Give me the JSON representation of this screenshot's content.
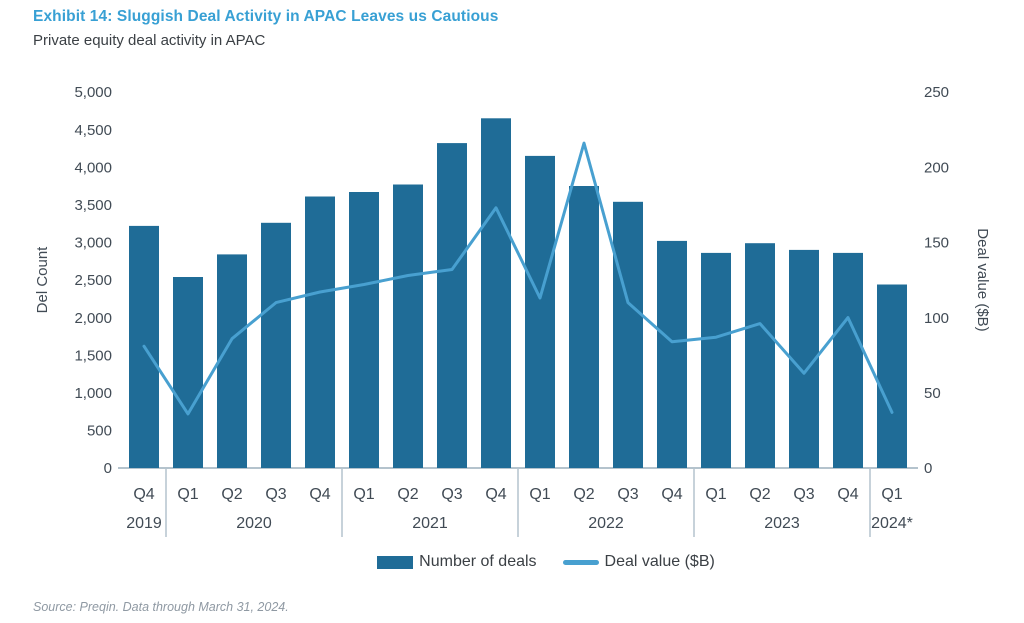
{
  "header": {
    "exhibit_title": "Exhibit 14: Sluggish Deal Activity in APAC Leaves us Cautious",
    "subtitle": "Private equity deal activity in APAC"
  },
  "footer": {
    "source": "Source: Preqin. Data through March 31, 2024."
  },
  "colors": {
    "title": "#38a0d4",
    "bar": "#1f6c97",
    "line": "#48a0d0",
    "axis_text": "#414b55",
    "grid": "#b4c3cd",
    "source_text": "#8f99a3"
  },
  "chart_data": {
    "type": "bar",
    "title": "Private equity deal activity in APAC",
    "categories": [
      "Q4",
      "Q1",
      "Q2",
      "Q3",
      "Q4",
      "Q1",
      "Q2",
      "Q3",
      "Q4",
      "Q1",
      "Q2",
      "Q3",
      "Q4",
      "Q1",
      "Q2",
      "Q3",
      "Q4",
      "Q1"
    ],
    "year_groups": [
      {
        "label": "2019",
        "count": 1
      },
      {
        "label": "2020",
        "count": 4
      },
      {
        "label": "2021",
        "count": 4
      },
      {
        "label": "2022",
        "count": 4
      },
      {
        "label": "2023",
        "count": 4
      },
      {
        "label": "2024*",
        "count": 1
      }
    ],
    "series": [
      {
        "name": "Number of deals",
        "type": "bar",
        "axis": "left",
        "values": [
          3220,
          2540,
          2840,
          3260,
          3610,
          3670,
          3770,
          4320,
          4650,
          4150,
          3750,
          3540,
          3020,
          2860,
          2990,
          2900,
          2860,
          2440
        ]
      },
      {
        "name": "Deal value ($B)",
        "type": "line",
        "axis": "right",
        "values": [
          81,
          36,
          86,
          110,
          117,
          122,
          128,
          132,
          173,
          113,
          216,
          110,
          84,
          87,
          96,
          63,
          100,
          37
        ]
      }
    ],
    "left_axis": {
      "label": "Del Count",
      "min": 0,
      "max": 5000,
      "step": 500
    },
    "right_axis": {
      "label": "Deal value ($B)",
      "min": 0,
      "max": 250,
      "step": 50
    },
    "legend_position": "bottom",
    "grid": false
  }
}
